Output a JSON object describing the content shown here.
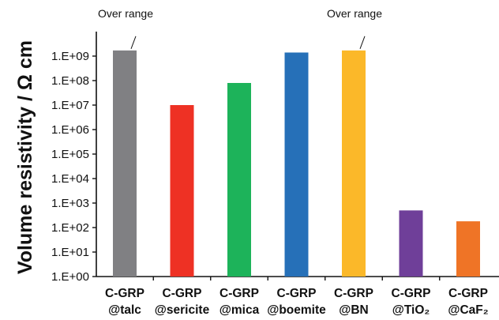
{
  "chart_data": {
    "type": "bar",
    "ylabel": "Volume resistivity / Ω cm",
    "y_scale": "log",
    "ylim": [
      1,
      10000000000
    ],
    "y_ticks": [
      "1.E+00",
      "1.E+01",
      "1.E+02",
      "1.E+03",
      "1.E+04",
      "1.E+05",
      "1.E+06",
      "1.E+07",
      "1.E+08",
      "1.E+09"
    ],
    "grid": false,
    "categories": [
      {
        "line1": "C-GRP",
        "line2": "@talc"
      },
      {
        "line1": "C-GRP",
        "line2": "@sericite"
      },
      {
        "line1": "C-GRP",
        "line2": "@mica"
      },
      {
        "line1": "C-GRP",
        "line2": "@boemite"
      },
      {
        "line1": "C-GRP",
        "line2": "@BN"
      },
      {
        "line1": "C-GRP",
        "line2": "@TiO₂"
      },
      {
        "line1": "C-GRP",
        "line2": "@CaF₂"
      }
    ],
    "values": [
      1700000000,
      10000000,
      80000000,
      1400000000,
      1700000000,
      500,
      180
    ],
    "colors": [
      "#808083",
      "#ee3124",
      "#1db35a",
      "#2670b8",
      "#fbb829",
      "#6f3f99",
      "#ef7426"
    ],
    "annotations": [
      {
        "text": "Over range",
        "category_index": 0
      },
      {
        "text": "Over range",
        "category_index": 4
      }
    ]
  }
}
